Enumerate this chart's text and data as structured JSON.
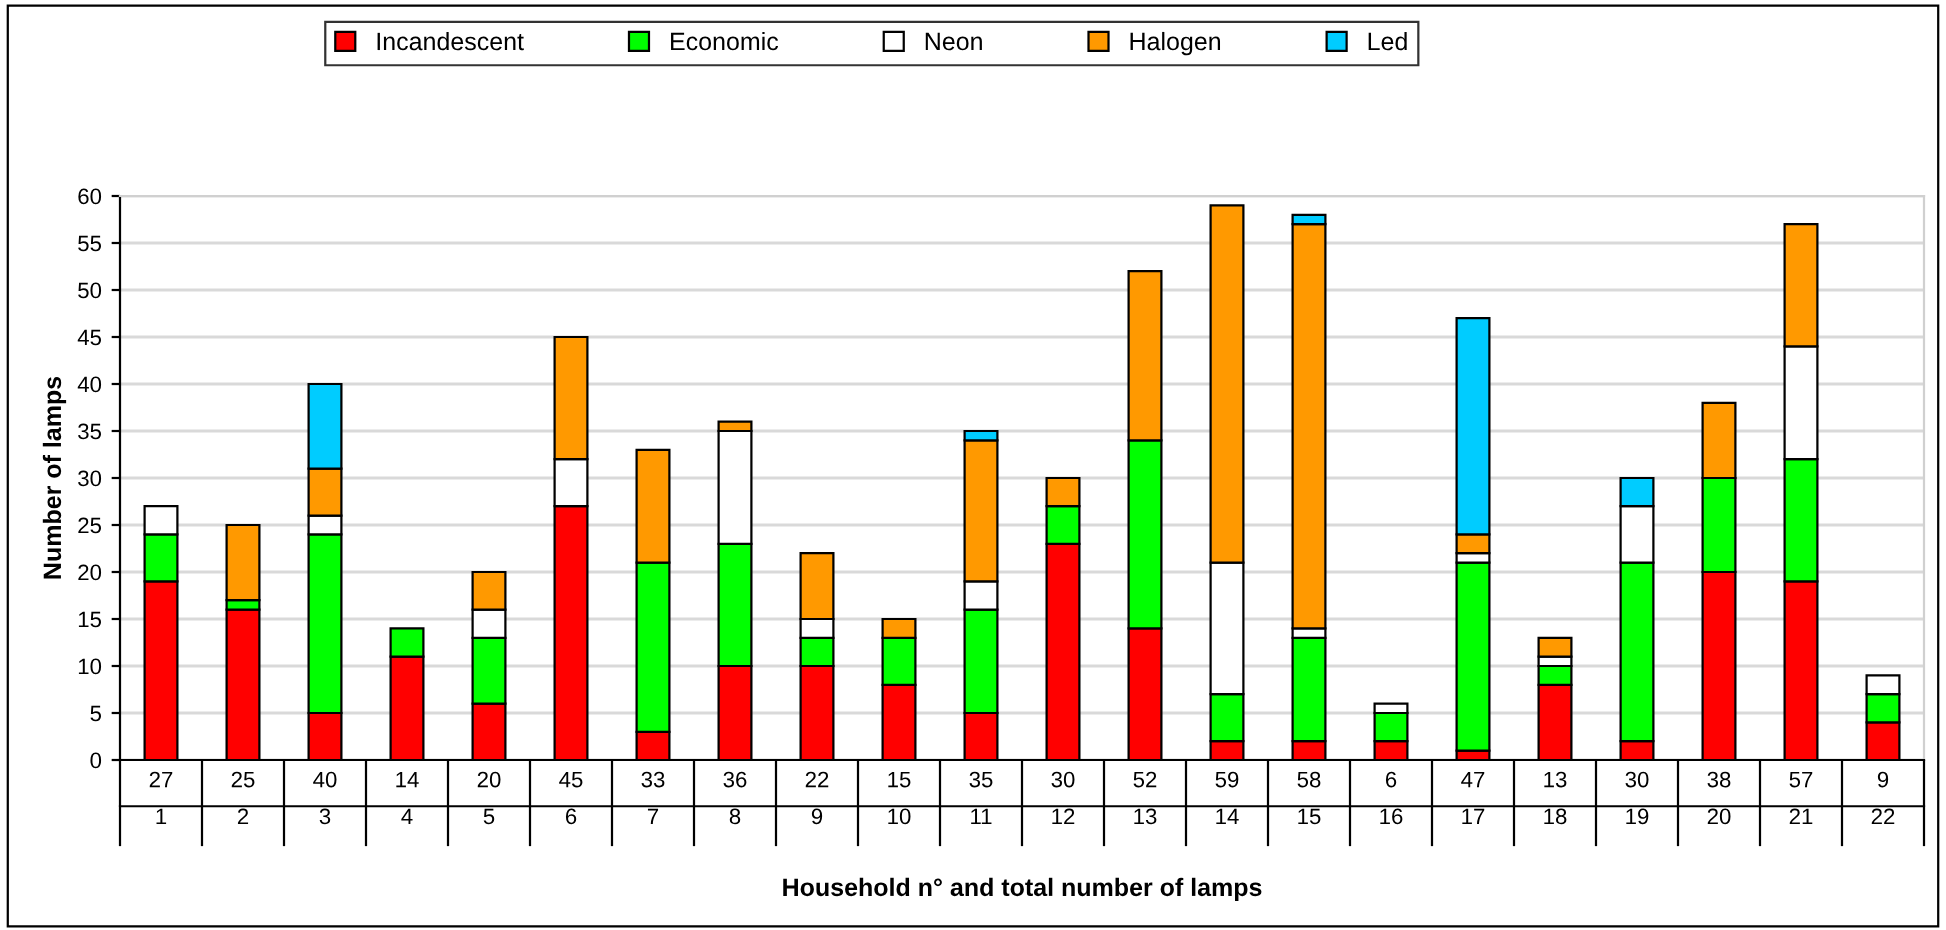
{
  "chart_data": {
    "type": "bar",
    "stacked": true,
    "xlabel": "Household n° and total number of lamps",
    "ylabel": "Number of lamps",
    "categories": [
      "1",
      "2",
      "3",
      "4",
      "5",
      "6",
      "7",
      "8",
      "9",
      "10",
      "11",
      "12",
      "13",
      "14",
      "15",
      "16",
      "17",
      "18",
      "19",
      "20",
      "21",
      "22"
    ],
    "totals": [
      "27",
      "25",
      "40",
      "14",
      "20",
      "45",
      "33",
      "36",
      "22",
      "15",
      "35",
      "30",
      "52",
      "59",
      "58",
      "6",
      "47",
      "13",
      "30",
      "38",
      "57",
      "9"
    ],
    "series": [
      {
        "name": "Incandescent",
        "color": "#ff0000",
        "values": [
          19,
          16,
          5,
          11,
          6,
          27,
          3,
          10,
          10,
          8,
          5,
          23,
          14,
          2,
          2,
          2,
          1,
          8,
          2,
          20,
          19,
          4
        ]
      },
      {
        "name": "Economic",
        "color": "#00ff00",
        "values": [
          5,
          1,
          19,
          3,
          7,
          0,
          18,
          13,
          3,
          5,
          11,
          4,
          20,
          5,
          11,
          3,
          20,
          2,
          19,
          10,
          13,
          3
        ]
      },
      {
        "name": "Neon",
        "color": "#ffffff",
        "values": [
          3,
          0,
          2,
          0,
          3,
          5,
          0,
          12,
          2,
          0,
          3,
          0,
          0,
          14,
          1,
          1,
          1,
          1,
          6,
          0,
          12,
          2
        ]
      },
      {
        "name": "Halogen",
        "color": "#ff9900",
        "values": [
          0,
          8,
          5,
          0,
          4,
          13,
          12,
          1,
          7,
          2,
          15,
          3,
          18,
          38,
          43,
          0,
          2,
          2,
          0,
          8,
          13,
          0
        ]
      },
      {
        "name": "Led",
        "color": "#00ccff",
        "values": [
          0,
          0,
          9,
          0,
          0,
          0,
          0,
          0,
          0,
          0,
          1,
          0,
          0,
          0,
          1,
          0,
          23,
          0,
          3,
          0,
          0,
          0
        ]
      }
    ],
    "ylim": [
      0,
      60
    ],
    "yticks": [
      0,
      5,
      10,
      15,
      20,
      25,
      30,
      35,
      40,
      45,
      50,
      55,
      60
    ],
    "grid": "y",
    "legend": "top"
  }
}
